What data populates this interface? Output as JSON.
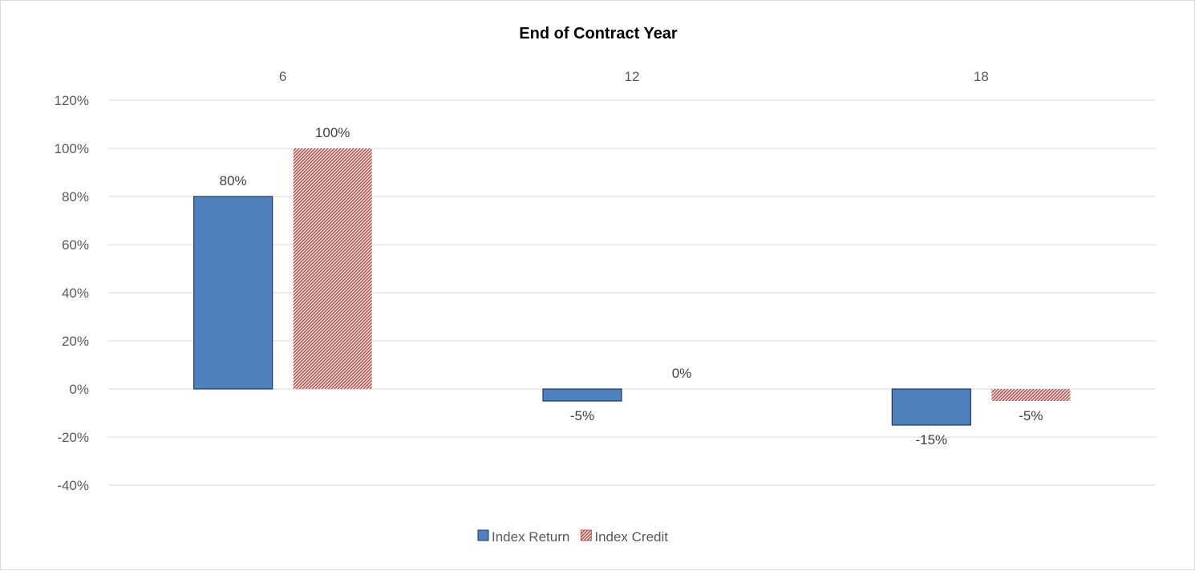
{
  "chart_data": {
    "type": "bar",
    "title": "End of Contract Year",
    "categories": [
      "6",
      "12",
      "18"
    ],
    "series": [
      {
        "name": "Index Return",
        "values": [
          80,
          -5,
          -15
        ],
        "labels": [
          "80%",
          "-5%",
          "-15%"
        ],
        "color": "#4f81bd",
        "pattern": "solid"
      },
      {
        "name": "Index Credit",
        "values": [
          100,
          0,
          -5
        ],
        "labels": [
          "100%",
          "0%",
          "-5%"
        ],
        "color": "#c0504d",
        "pattern": "diagonal-hatch"
      }
    ],
    "ylim": [
      -40,
      120
    ],
    "yticks": [
      120,
      100,
      80,
      60,
      40,
      20,
      0,
      -20,
      -40
    ],
    "ytick_labels": [
      "120%",
      "100%",
      "80%",
      "60%",
      "40%",
      "20%",
      "0%",
      "-20%",
      "-40%"
    ],
    "xaxis_position": "top",
    "grid": true,
    "legend_position": "bottom"
  },
  "colors": {
    "grid": "#d9d9d9",
    "bar_outline": "#1f3864"
  }
}
